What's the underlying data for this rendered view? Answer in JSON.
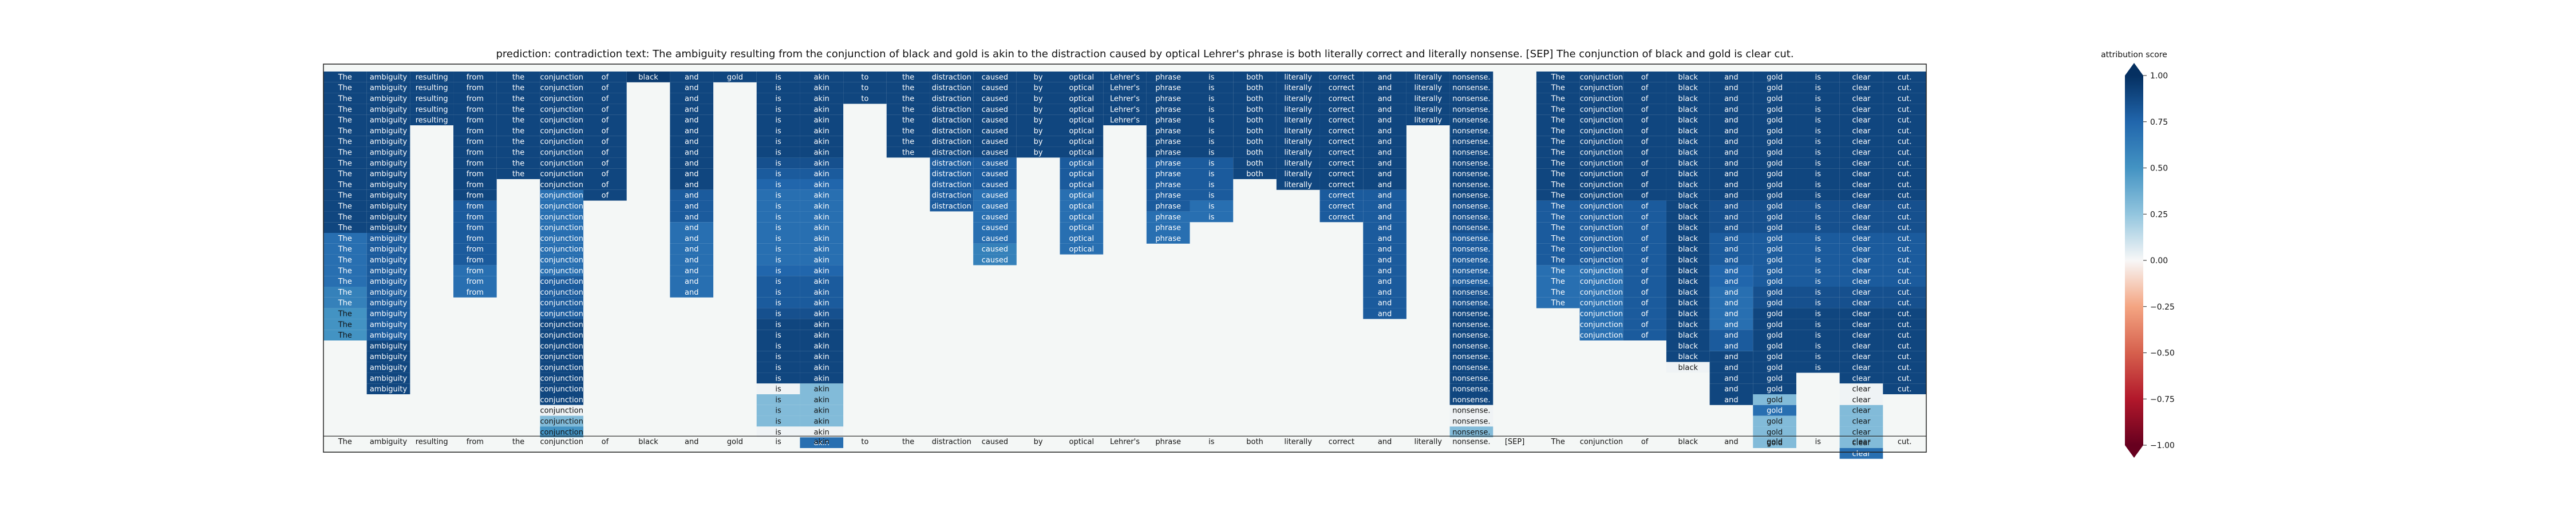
{
  "chart_data": {
    "type": "heatmap",
    "title": "prediction:  contradiction     text:  The ambiguity resulting from the conjunction of black and gold is akin to the distraction caused by optical Lehrer's phrase is both literally correct and literally nonsense. [SEP] The conjunction of black and gold is clear cut.",
    "tokens": [
      "The",
      "ambiguity",
      "resulting",
      "from",
      "the",
      "conjunction",
      "of",
      "black",
      "and",
      "gold",
      "is",
      "akin",
      "to",
      "the",
      "distraction",
      "caused",
      "by",
      "optical",
      "Lehrer's",
      "phrase",
      "is",
      "both",
      "literally",
      "correct",
      "and",
      "literally",
      "nonsense.",
      "[SEP]",
      "The",
      "conjunction",
      "of",
      "black",
      "and",
      "gold",
      "is",
      "clear",
      "cut."
    ],
    "rows": 34,
    "column_scores": [
      [
        0.9,
        0.9,
        0.9,
        0.9,
        0.9,
        0.9,
        0.9,
        0.9,
        0.9,
        0.9,
        0.9,
        0.9,
        0.9,
        0.9,
        0.9,
        0.7,
        0.7,
        0.7,
        0.7,
        0.7,
        0.6,
        0.6,
        0.5,
        0.5,
        0.5
      ],
      [
        0.9,
        0.9,
        0.9,
        0.9,
        0.9,
        0.9,
        0.9,
        0.9,
        0.9,
        0.9,
        0.9,
        0.9,
        0.9,
        0.9,
        0.9,
        0.8,
        0.8,
        0.8,
        0.8,
        0.8,
        0.8,
        0.8,
        0.8,
        0.8,
        0.8,
        0.9,
        0.9,
        0.9,
        0.9,
        0.9
      ],
      [
        0.9,
        0.9,
        0.9,
        0.9,
        0.9
      ],
      [
        0.9,
        0.9,
        0.9,
        0.9,
        0.9,
        0.9,
        0.9,
        0.9,
        0.9,
        0.9,
        0.9,
        0.9,
        0.8,
        0.8,
        0.8,
        0.8,
        0.8,
        0.8,
        0.7,
        0.7,
        0.7
      ],
      [
        0.9,
        0.9,
        0.9,
        0.9,
        0.9,
        0.9,
        0.9,
        0.9,
        0.9,
        0.9
      ],
      [
        0.9,
        0.9,
        0.9,
        0.9,
        0.9,
        0.9,
        0.9,
        0.9,
        0.9,
        0.9,
        0.9,
        0.7,
        0.7,
        0.7,
        0.7,
        0.7,
        0.7,
        0.7,
        0.7,
        0.8,
        0.8,
        0.8,
        0.8,
        0.9,
        0.9,
        0.9,
        0.9,
        0.9,
        0.9,
        0.9,
        0.9,
        0.02,
        0.3,
        0.5
      ],
      [
        0.9,
        0.9,
        0.9,
        0.9,
        0.9,
        0.9,
        0.9,
        0.9,
        0.9,
        0.9,
        0.9,
        0.9
      ],
      [
        0.95
      ],
      [
        0.9,
        0.9,
        0.9,
        0.9,
        0.9,
        0.9,
        0.9,
        0.9,
        0.9,
        0.9,
        0.9,
        0.8,
        0.8,
        0.8,
        0.7,
        0.7,
        0.7,
        0.7,
        0.7,
        0.7,
        0.7
      ],
      [
        0.9
      ],
      [
        0.9,
        0.9,
        0.9,
        0.9,
        0.9,
        0.9,
        0.9,
        0.9,
        0.85,
        0.8,
        0.75,
        0.7,
        0.7,
        0.7,
        0.7,
        0.7,
        0.7,
        0.7,
        0.75,
        0.8,
        0.8,
        0.8,
        0.85,
        0.9,
        0.9,
        0.9,
        0.9,
        0.9,
        0.9,
        0.02,
        0.3,
        0.3,
        0.3,
        0.02
      ],
      [
        0.9,
        0.9,
        0.9,
        0.9,
        0.9,
        0.9,
        0.9,
        0.9,
        0.85,
        0.8,
        0.75,
        0.7,
        0.7,
        0.7,
        0.7,
        0.7,
        0.7,
        0.7,
        0.75,
        0.8,
        0.8,
        0.8,
        0.85,
        0.9,
        0.9,
        0.9,
        0.9,
        0.9,
        0.9,
        0.3,
        0.3,
        0.3,
        0.3,
        0.02,
        0.7
      ],
      [
        0.9,
        0.9,
        0.9
      ],
      [
        0.9,
        0.9,
        0.9,
        0.9,
        0.9,
        0.9,
        0.9,
        0.9
      ],
      [
        0.9,
        0.9,
        0.9,
        0.9,
        0.9,
        0.9,
        0.9,
        0.9,
        0.8,
        0.8,
        0.8,
        0.8,
        0.8
      ],
      [
        0.9,
        0.9,
        0.9,
        0.9,
        0.9,
        0.9,
        0.9,
        0.9,
        0.8,
        0.8,
        0.8,
        0.7,
        0.7,
        0.7,
        0.7,
        0.7,
        0.6,
        0.6
      ],
      [
        0.9,
        0.9,
        0.9,
        0.9,
        0.9,
        0.9,
        0.9,
        0.9
      ],
      [
        0.9,
        0.9,
        0.9,
        0.9,
        0.9,
        0.9,
        0.9,
        0.9,
        0.8,
        0.8,
        0.8,
        0.7,
        0.7,
        0.7,
        0.7,
        0.7,
        0.7
      ],
      [
        0.9,
        0.9,
        0.9,
        0.9,
        0.9
      ],
      [
        0.9,
        0.9,
        0.9,
        0.9,
        0.9,
        0.9,
        0.9,
        0.9,
        0.8,
        0.8,
        0.8,
        0.8,
        0.8,
        0.7,
        0.7,
        0.7
      ],
      [
        0.9,
        0.9,
        0.9,
        0.9,
        0.9,
        0.9,
        0.9,
        0.9,
        0.8,
        0.8,
        0.8,
        0.8,
        0.7,
        0.7
      ],
      [
        0.9,
        0.9,
        0.9,
        0.9,
        0.9,
        0.9,
        0.9,
        0.9,
        0.9,
        0.9
      ],
      [
        0.9,
        0.9,
        0.9,
        0.9,
        0.9,
        0.9,
        0.9,
        0.9,
        0.9,
        0.9,
        0.9
      ],
      [
        0.9,
        0.9,
        0.9,
        0.9,
        0.9,
        0.9,
        0.9,
        0.9,
        0.9,
        0.9,
        0.9,
        0.8,
        0.8,
        0.8
      ],
      [
        0.9,
        0.9,
        0.9,
        0.9,
        0.9,
        0.9,
        0.9,
        0.9,
        0.9,
        0.9,
        0.9,
        0.8,
        0.8,
        0.8,
        0.8,
        0.8,
        0.8,
        0.8,
        0.8,
        0.8,
        0.8,
        0.8,
        0.8
      ],
      [
        0.9,
        0.9,
        0.9,
        0.9,
        0.9
      ],
      [
        0.9,
        0.9,
        0.9,
        0.9,
        0.9,
        0.9,
        0.9,
        0.9,
        0.9,
        0.9,
        0.9,
        0.9,
        0.85,
        0.85,
        0.85,
        0.8,
        0.8,
        0.8,
        0.8,
        0.8,
        0.85,
        0.85,
        0.9,
        0.9,
        0.9,
        0.9,
        0.9,
        0.9,
        0.9,
        0.9,
        0.9,
        0.02,
        0.02,
        0.3
      ],
      [],
      [
        0.9,
        0.9,
        0.9,
        0.9,
        0.9,
        0.9,
        0.9,
        0.9,
        0.9,
        0.9,
        0.9,
        0.9,
        0.8,
        0.8,
        0.8,
        0.8,
        0.8,
        0.8,
        0.7,
        0.7,
        0.7,
        0.7
      ],
      [
        0.9,
        0.9,
        0.9,
        0.9,
        0.9,
        0.9,
        0.9,
        0.9,
        0.9,
        0.9,
        0.9,
        0.9,
        0.8,
        0.8,
        0.8,
        0.8,
        0.8,
        0.8,
        0.7,
        0.7,
        0.7,
        0.7,
        0.7,
        0.7,
        0.7
      ],
      [
        0.9,
        0.9,
        0.9,
        0.9,
        0.9,
        0.9,
        0.9,
        0.9,
        0.9,
        0.9,
        0.9,
        0.9,
        0.8,
        0.8,
        0.8,
        0.8,
        0.8,
        0.8,
        0.8,
        0.8,
        0.8,
        0.8,
        0.8,
        0.8,
        0.8
      ],
      [
        0.9,
        0.9,
        0.9,
        0.9,
        0.9,
        0.9,
        0.9,
        0.9,
        0.9,
        0.9,
        0.9,
        0.9,
        0.9,
        0.9,
        0.9,
        0.9,
        0.9,
        0.9,
        0.9,
        0.9,
        0.9,
        0.9,
        0.9,
        0.9,
        0.9,
        0.9,
        0.9,
        0.02
      ],
      [
        0.9,
        0.9,
        0.9,
        0.9,
        0.9,
        0.9,
        0.9,
        0.9,
        0.9,
        0.9,
        0.9,
        0.9,
        0.85,
        0.85,
        0.85,
        0.8,
        0.8,
        0.8,
        0.75,
        0.75,
        0.7,
        0.7,
        0.7,
        0.7,
        0.8,
        0.8,
        0.9,
        0.9,
        0.9,
        0.9,
        0.9
      ],
      [
        0.9,
        0.9,
        0.9,
        0.9,
        0.9,
        0.9,
        0.9,
        0.9,
        0.9,
        0.9,
        0.9,
        0.9,
        0.85,
        0.85,
        0.85,
        0.8,
        0.8,
        0.8,
        0.8,
        0.8,
        0.85,
        0.85,
        0.9,
        0.9,
        0.9,
        0.9,
        0.9,
        0.9,
        0.9,
        0.9,
        0.3,
        0.7,
        0.3,
        0.3,
        0.3
      ],
      [
        0.9,
        0.9,
        0.9,
        0.9,
        0.9,
        0.9,
        0.9,
        0.9,
        0.9,
        0.9,
        0.9,
        0.9,
        0.85,
        0.85,
        0.85,
        0.8,
        0.8,
        0.8,
        0.8,
        0.8,
        0.85,
        0.85,
        0.9,
        0.9,
        0.9,
        0.9,
        0.9,
        0.9
      ],
      [
        0.9,
        0.9,
        0.9,
        0.9,
        0.9,
        0.9,
        0.9,
        0.9,
        0.9,
        0.9,
        0.9,
        0.9,
        0.85,
        0.85,
        0.85,
        0.8,
        0.8,
        0.8,
        0.8,
        0.8,
        0.85,
        0.85,
        0.9,
        0.9,
        0.9,
        0.9,
        0.9,
        0.9,
        0.9,
        0.02,
        0.02,
        0.3,
        0.3,
        0.3,
        0.3,
        0.7
      ],
      [
        0.9,
        0.9,
        0.9,
        0.9,
        0.9,
        0.9,
        0.9,
        0.9,
        0.9,
        0.9,
        0.9,
        0.9,
        0.85,
        0.85,
        0.85,
        0.8,
        0.8,
        0.8,
        0.8,
        0.8,
        0.85,
        0.85,
        0.9,
        0.9,
        0.9,
        0.9,
        0.9,
        0.9,
        0.9,
        0.9
      ]
    ],
    "colorbar": {
      "label": "attribution score",
      "range": [
        -1.0,
        1.0
      ],
      "ticks": [
        "1.00",
        "0.75",
        "0.50",
        "0.25",
        "0.00",
        "−0.25",
        "−0.50",
        "−0.75",
        "−1.00"
      ],
      "colormap": "RdBu"
    },
    "grid": false
  }
}
